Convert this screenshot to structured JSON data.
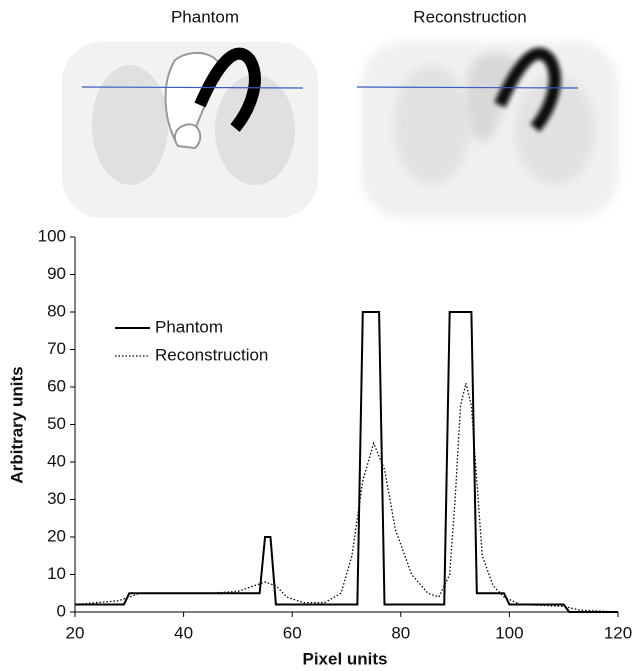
{
  "images": [
    {
      "title": "Phantom"
    },
    {
      "title": "Reconstruction"
    }
  ],
  "chart_data": {
    "type": "line",
    "x_label": "Pixel units",
    "y_label": "Arbitrary units",
    "xlim": [
      20,
      120
    ],
    "xticks": [
      20,
      40,
      60,
      80,
      100,
      120
    ],
    "ylim": [
      0,
      100
    ],
    "yticks": [
      0,
      10,
      20,
      30,
      40,
      50,
      60,
      70,
      80,
      90,
      100
    ],
    "grid": false,
    "legend": "upper-left",
    "series": [
      {
        "name": "Phantom",
        "color": "#000000",
        "dash": "solid",
        "x": [
          20,
          29,
          30,
          54,
          55,
          56,
          57,
          72,
          73,
          76,
          77,
          88,
          89,
          93,
          94,
          99,
          100,
          110,
          111,
          120
        ],
        "values": [
          2,
          2,
          5,
          5,
          20,
          20,
          2,
          2,
          80,
          80,
          2,
          2,
          80,
          80,
          5,
          5,
          2,
          2,
          0,
          0
        ]
      },
      {
        "name": "Reconstruction",
        "color": "#000000",
        "dash": "dotted",
        "x": [
          20,
          28,
          32,
          45,
          50,
          53,
          55,
          57,
          59,
          62,
          66,
          69,
          71,
          73,
          75,
          77,
          79,
          82,
          85,
          87,
          89,
          90,
          91,
          92,
          93,
          94,
          95,
          97,
          99,
          102,
          110,
          113,
          120
        ],
        "values": [
          2,
          3,
          5,
          5,
          5.5,
          7,
          8,
          7,
          4,
          2.5,
          2.5,
          5,
          15,
          35,
          45,
          38,
          22,
          10,
          5,
          4,
          10,
          30,
          55,
          61,
          55,
          35,
          15,
          7,
          4,
          2,
          1.5,
          0.5,
          0
        ]
      }
    ]
  }
}
